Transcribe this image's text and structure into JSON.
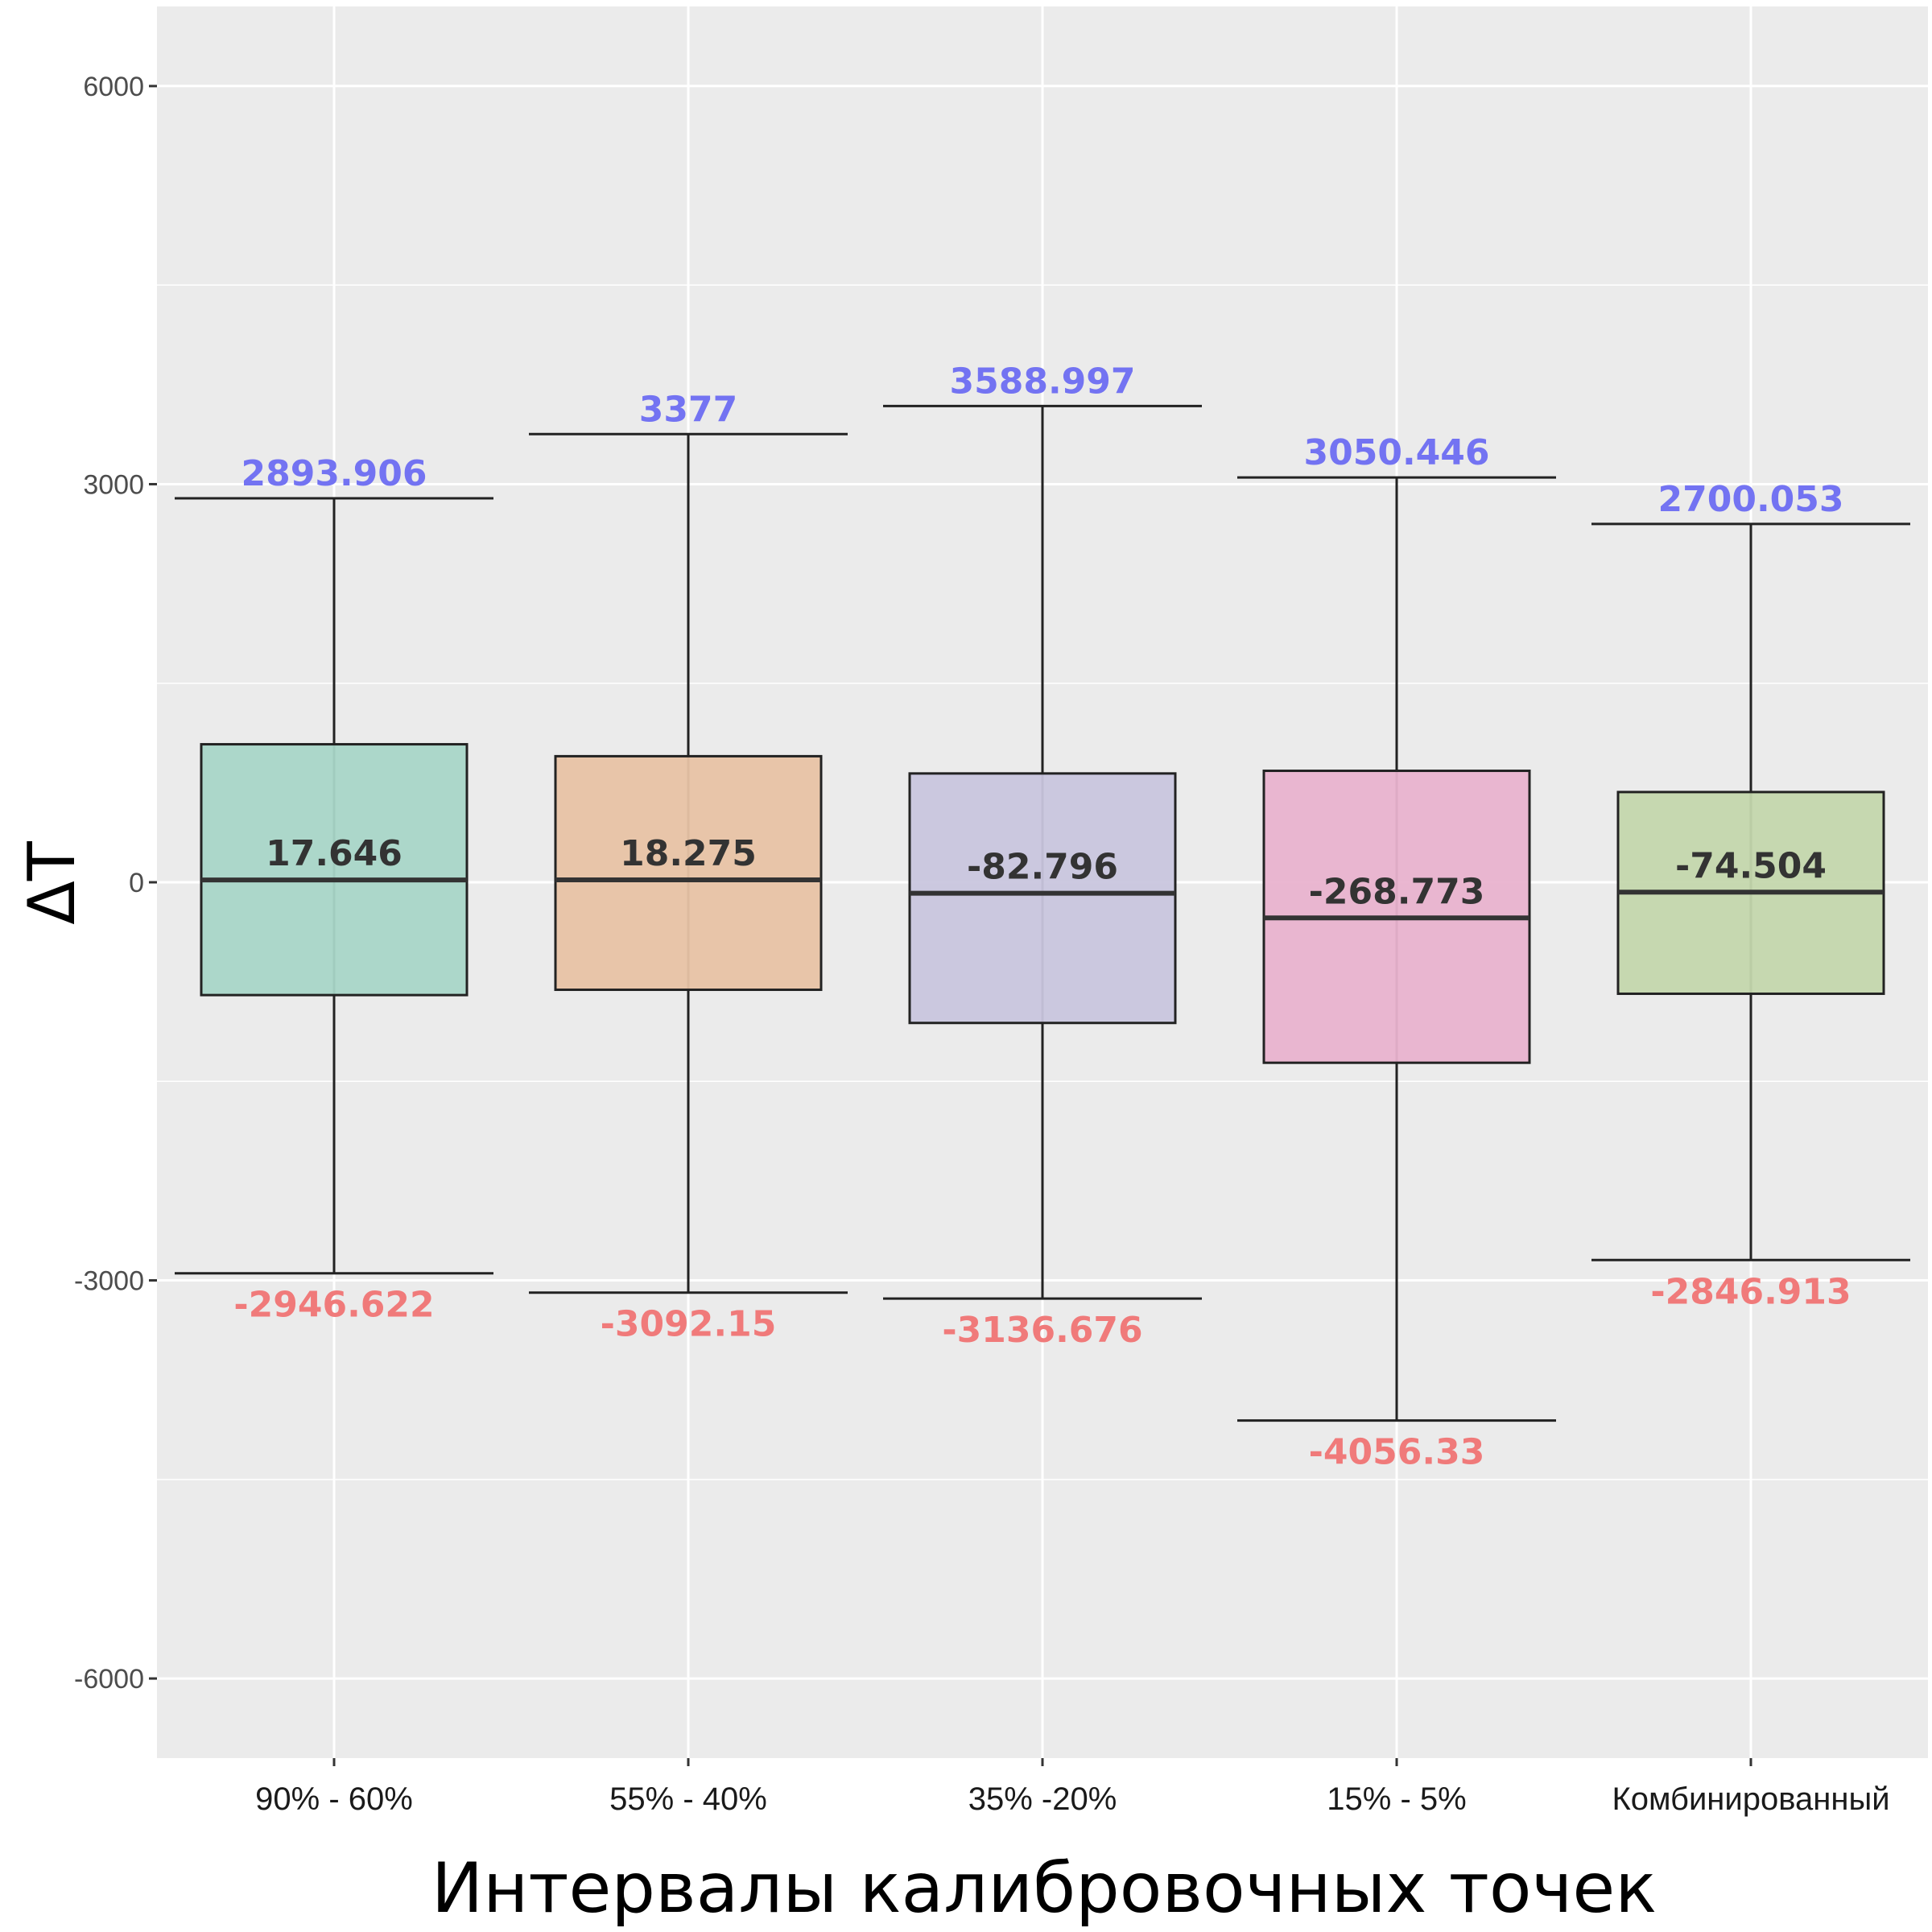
{
  "chart_data": {
    "type": "box",
    "xlabel": "Интервалы калибровочных точек",
    "ylabel": "ΔT",
    "ylim": [
      -6600,
      6600
    ],
    "yticks": [
      6000,
      3000,
      0,
      -3000,
      -6000
    ],
    "ytick_labels": [
      "6000",
      "3000",
      "0",
      "-3000",
      "-6000"
    ],
    "grid": true,
    "categories": [
      "90% - 60%",
      "55% - 40%",
      "35% -20%",
      "15% - 5%",
      "Комбинированный"
    ],
    "boxes": [
      {
        "category": "90% - 60%",
        "min": -2946.622,
        "q1": -850,
        "median": 17.646,
        "q3": 1040,
        "max": 2893.906,
        "min_label": "-2946.622",
        "median_label": "17.646",
        "max_label": "2893.906",
        "color": "#a9d6c8"
      },
      {
        "category": "55% - 40%",
        "min": -3092.15,
        "q1": -810,
        "median": 18.275,
        "q3": 950,
        "max": 3377,
        "min_label": "-3092.15",
        "median_label": "18.275",
        "max_label": "3377",
        "color": "#e8c3a5"
      },
      {
        "category": "35% -20%",
        "min": -3136.676,
        "q1": -1060,
        "median": -82.796,
        "q3": 820,
        "max": 3588.997,
        "min_label": "-3136.676",
        "median_label": "-82.796",
        "max_label": "3588.997",
        "color": "#c9c6de"
      },
      {
        "category": "15% - 5%",
        "min": -4056.33,
        "q1": -1360,
        "median": -268.773,
        "q3": 840,
        "max": 3050.446,
        "min_label": "-4056.33",
        "median_label": "-268.773",
        "max_label": "3050.446",
        "color": "#e9b3cf"
      },
      {
        "category": "Комбинированный",
        "min": -2846.913,
        "q1": -840,
        "median": -74.504,
        "q3": 680,
        "max": 2700.053,
        "min_label": "-2846.913",
        "median_label": "-74.504",
        "max_label": "2700.053",
        "color": "#c4d7ad"
      }
    ],
    "colors": {
      "max_label": "#7373f2",
      "min_label": "#f07a7a",
      "median_label": "#333333",
      "panel": "#ebebeb",
      "grid": "#ffffff"
    }
  }
}
